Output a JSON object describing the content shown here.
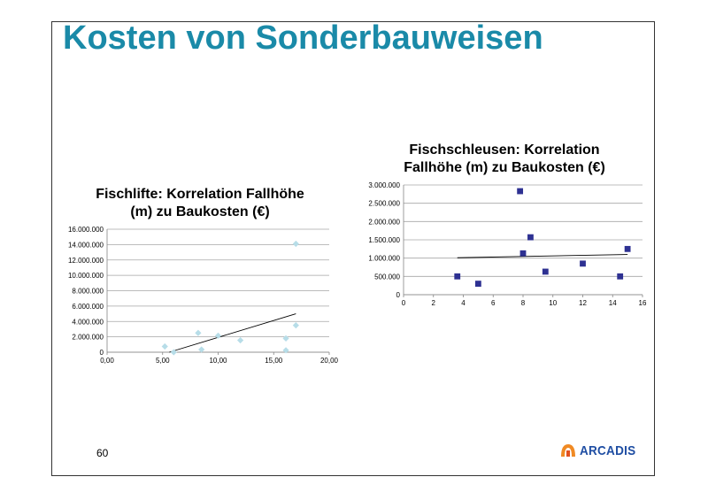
{
  "slide": {
    "title": "Kosten von Sonderbauweisen",
    "page_number": "60",
    "logo_text": "ARCADIS"
  },
  "colors": {
    "title": "#1a8aa8",
    "series_fischlifte": "#b7dde8",
    "series_fischschleusen": "#2e3192",
    "trendline": "#000000",
    "grid": "#a6a6a6"
  },
  "chart_data": [
    {
      "type": "scatter",
      "title_lines": [
        "Fischlifte: Korrelation Fallhöhe",
        "(m) zu Baukosten (€)"
      ],
      "xlim": [
        0,
        20
      ],
      "ylim": [
        0,
        16000000
      ],
      "xticks": [
        0,
        5,
        10,
        15,
        20
      ],
      "xtick_labels": [
        "0,00",
        "5,00",
        "10,00",
        "15,00",
        "20,00"
      ],
      "yticks": [
        0,
        2000000,
        4000000,
        6000000,
        8000000,
        10000000,
        12000000,
        14000000,
        16000000
      ],
      "ytick_labels": [
        "0",
        "2.000.000",
        "4.000.000",
        "6.000.000",
        "8.000.000",
        "10.000.000",
        "12.000.000",
        "14.000.000",
        "16.000.000"
      ],
      "grid": "horizontal",
      "marker": "diamond",
      "points": [
        [
          5.2,
          750000
        ],
        [
          6.0,
          0
        ],
        [
          8.2,
          2500000
        ],
        [
          8.5,
          350000
        ],
        [
          10.0,
          2150000
        ],
        [
          12.0,
          1550000
        ],
        [
          16.1,
          1800000
        ],
        [
          16.1,
          250000
        ],
        [
          17.0,
          14100000
        ],
        [
          17.0,
          3500000
        ]
      ],
      "trendline": [
        [
          5.6,
          0
        ],
        [
          17.0,
          5000000
        ]
      ]
    },
    {
      "type": "scatter",
      "title_lines": [
        "Fischschleusen: Korrelation",
        "Fallhöhe (m) zu Baukosten (€)"
      ],
      "xlim": [
        0,
        16
      ],
      "ylim": [
        0,
        3000000
      ],
      "xticks": [
        0,
        2,
        4,
        6,
        8,
        10,
        12,
        14,
        16
      ],
      "xtick_labels": [
        "0",
        "2",
        "4",
        "6",
        "8",
        "10",
        "12",
        "14",
        "16"
      ],
      "yticks": [
        0,
        500000,
        1000000,
        1500000,
        2000000,
        2500000,
        3000000
      ],
      "ytick_labels": [
        "0",
        "500.000",
        "1.000.000",
        "1.500.000",
        "2.000.000",
        "2.500.000",
        "3.000.000"
      ],
      "grid": "horizontal",
      "marker": "square",
      "points": [
        [
          3.6,
          500000
        ],
        [
          5.0,
          300000
        ],
        [
          7.8,
          2830000
        ],
        [
          8.0,
          1130000
        ],
        [
          8.5,
          1570000
        ],
        [
          9.5,
          630000
        ],
        [
          12.0,
          850000
        ],
        [
          14.5,
          500000
        ],
        [
          15.0,
          1250000
        ]
      ],
      "trendline": [
        [
          3.6,
          1010000
        ],
        [
          15.0,
          1100000
        ]
      ]
    }
  ]
}
